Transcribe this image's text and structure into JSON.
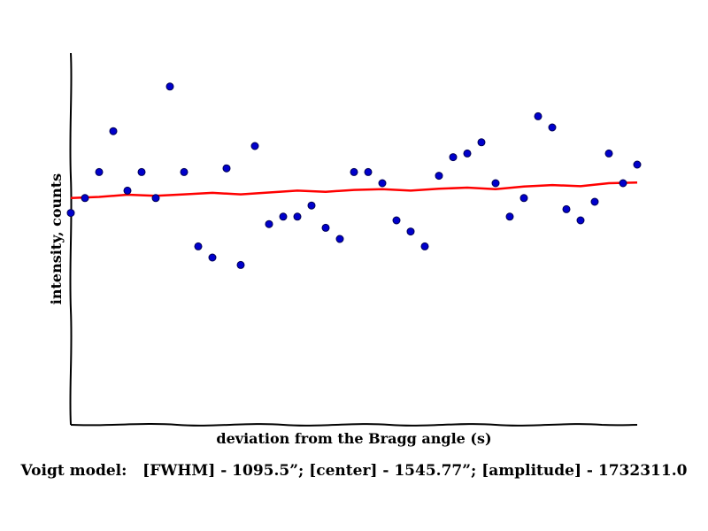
{
  "chart_data": {
    "type": "scatter",
    "xlabel": "deviation from the Bragg angle (s)",
    "ylabel": "intensity, counts",
    "xlim": [
      0,
      40
    ],
    "ylim": [
      0,
      100
    ],
    "grid": false,
    "x": [
      0,
      1,
      2,
      3,
      4,
      5,
      6,
      7,
      8,
      9,
      10,
      11,
      12,
      13,
      14,
      15,
      16,
      17,
      18,
      19,
      20,
      21,
      22,
      23,
      24,
      25,
      26,
      27,
      28,
      29,
      30,
      31,
      32,
      33,
      34,
      35,
      36,
      37,
      38,
      39,
      40
    ],
    "series": [
      {
        "kind": "points",
        "color": "#0000cc",
        "values": [
          57,
          61,
          68,
          79,
          63,
          68,
          61,
          91,
          68,
          48,
          45,
          69,
          43,
          75,
          54,
          56,
          56,
          59,
          53,
          50,
          68,
          68,
          65,
          55,
          52,
          48,
          67,
          72,
          73,
          76,
          65,
          56,
          61,
          83,
          80,
          58,
          55,
          60,
          73,
          65,
          70
        ]
      },
      {
        "kind": "fit",
        "color": "#ff0000",
        "x": [
          0,
          2,
          4,
          6,
          8,
          10,
          12,
          14,
          16,
          18,
          20,
          22,
          24,
          26,
          28,
          30,
          32,
          34,
          36,
          38,
          40
        ],
        "values": [
          61.0,
          61.3,
          61.9,
          61.6,
          62.0,
          62.4,
          62.0,
          62.5,
          63.0,
          62.7,
          63.2,
          63.4,
          63.0,
          63.5,
          63.8,
          63.4,
          64.1,
          64.5,
          64.2,
          65.0,
          65.2
        ]
      }
    ]
  },
  "caption": "Voigt model:   [FWHM] - 1095.5”; [center] - 1545.77”; [amplitude] - 1732311.0"
}
